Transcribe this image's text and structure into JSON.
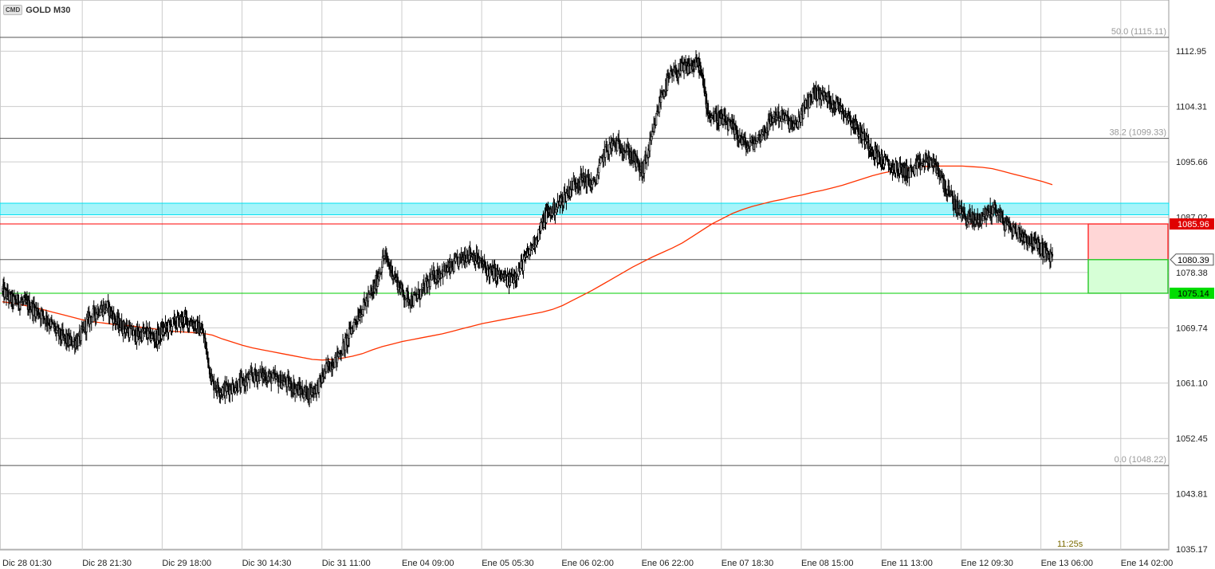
{
  "header": {
    "badge": "CMD",
    "symbol": "GOLD M30"
  },
  "timer": "11:25s",
  "colors": {
    "candle": "#000000",
    "ma": "#ff3300",
    "resistance_zone": "#00e0f0",
    "stop_line": "#ff0000",
    "target_line": "#00cc00",
    "grid": "#cccccc",
    "fib": "#555555"
  },
  "chart_data": {
    "type": "candlestick",
    "ylim": [
      1035.17,
      1118.0
    ],
    "y_ticks": [
      "1112.95",
      "1104.31",
      "1095.66",
      "1087.02",
      "1078.38",
      "1069.74",
      "1061.10",
      "1052.45",
      "1043.81",
      "1035.17"
    ],
    "x_ticks": [
      "Dic 28 01:30",
      "Dic 28 21:30",
      "Dic 29 18:00",
      "Dic 30 14:30",
      "Dic 31 11:00",
      "Ene 04 09:00",
      "Ene 05 05:30",
      "Ene 06 02:00",
      "Ene 06 22:00",
      "Ene 07 18:30",
      "Ene 08 15:00",
      "Ene 11 13:00",
      "Ene 12 09:30",
      "Ene 13 06:00",
      "Ene 14 02:00"
    ],
    "fibonacci": [
      {
        "label": "50.0 (1115.11)",
        "value": 1115.11
      },
      {
        "label": "38.2 (1099.33)",
        "value": 1099.33
      },
      {
        "label": "0.0 (1048.22)",
        "value": 1048.22
      }
    ],
    "price_levels": [
      {
        "label": "1085.96",
        "value": 1085.96,
        "kind": "stop"
      },
      {
        "label": "1080.39",
        "value": 1080.39,
        "kind": "current"
      },
      {
        "label": "1075.14",
        "value": 1075.14,
        "kind": "target"
      }
    ],
    "zone": {
      "from": 1087.4,
      "to": 1089.2
    },
    "closes": [
      1075.5,
      1074.0,
      1073.8,
      1073.0,
      1072.0,
      1070.5,
      1068.5,
      1067.5,
      1067.8,
      1071.0,
      1072.5,
      1073.0,
      1070.5,
      1069.5,
      1068.5,
      1069.0,
      1068.0,
      1069.5,
      1070.5,
      1071.0,
      1070.5,
      1069.0,
      1061.0,
      1060.0,
      1060.5,
      1061.0,
      1062.0,
      1062.5,
      1062.0,
      1061.5,
      1061.0,
      1060.0,
      1059.5,
      1060.5,
      1063.5,
      1065.0,
      1067.5,
      1071.0,
      1073.5,
      1076.0,
      1081.0,
      1078.0,
      1075.0,
      1074.0,
      1075.5,
      1077.5,
      1078.5,
      1079.0,
      1080.5,
      1081.5,
      1080.0,
      1078.5,
      1078.0,
      1077.0,
      1078.5,
      1081.0,
      1084.0,
      1087.5,
      1088.5,
      1090.5,
      1092.5,
      1093.0,
      1092.0,
      1097.0,
      1098.5,
      1098.0,
      1096.5,
      1094.0,
      1099.0,
      1106.0,
      1109.0,
      1110.0,
      1110.5,
      1111.0,
      1103.0,
      1102.5,
      1101.5,
      1100.0,
      1098.0,
      1099.0,
      1101.0,
      1103.0,
      1102.5,
      1101.0,
      1104.0,
      1106.5,
      1106.0,
      1105.0,
      1104.0,
      1102.0,
      1100.0,
      1098.0,
      1096.0,
      1095.0,
      1094.5,
      1094.0,
      1095.0,
      1096.0,
      1094.5,
      1091.0,
      1088.5,
      1087.0,
      1086.5,
      1087.5,
      1088.5,
      1086.0,
      1085.0,
      1084.0,
      1083.0,
      1082.0,
      1080.5
    ],
    "ma_values": [
      1073.8,
      1073.6,
      1073.3,
      1073.0,
      1072.6,
      1072.2,
      1071.8,
      1071.4,
      1071.0,
      1070.7,
      1070.5,
      1070.3,
      1070.2,
      1070.0,
      1069.8,
      1069.6,
      1069.4,
      1069.2,
      1069.1,
      1069.0,
      1068.9,
      1068.6,
      1068.0,
      1067.5,
      1067.0,
      1066.6,
      1066.3,
      1066.0,
      1065.7,
      1065.4,
      1065.1,
      1064.8,
      1064.7,
      1064.8,
      1065.0,
      1065.3,
      1065.7,
      1066.3,
      1066.8,
      1067.2,
      1067.6,
      1067.9,
      1068.2,
      1068.5,
      1068.8,
      1069.2,
      1069.6,
      1070.0,
      1070.4,
      1070.7,
      1071.0,
      1071.3,
      1071.6,
      1071.9,
      1072.2,
      1072.6,
      1073.2,
      1074.0,
      1074.8,
      1075.6,
      1076.5,
      1077.4,
      1078.3,
      1079.2,
      1080.0,
      1080.8,
      1081.5,
      1082.2,
      1083.0,
      1084.0,
      1085.0,
      1086.0,
      1086.8,
      1087.6,
      1088.2,
      1088.7,
      1089.1,
      1089.5,
      1089.8,
      1090.2,
      1090.5,
      1090.9,
      1091.2,
      1091.6,
      1092.0,
      1092.5,
      1093.0,
      1093.5,
      1093.9,
      1094.2,
      1094.5,
      1094.8,
      1094.9,
      1095.0,
      1095.0,
      1095.0,
      1095.0,
      1094.9,
      1094.8,
      1094.6,
      1094.2,
      1093.8,
      1093.4,
      1093.0,
      1092.6,
      1092.1
    ]
  }
}
